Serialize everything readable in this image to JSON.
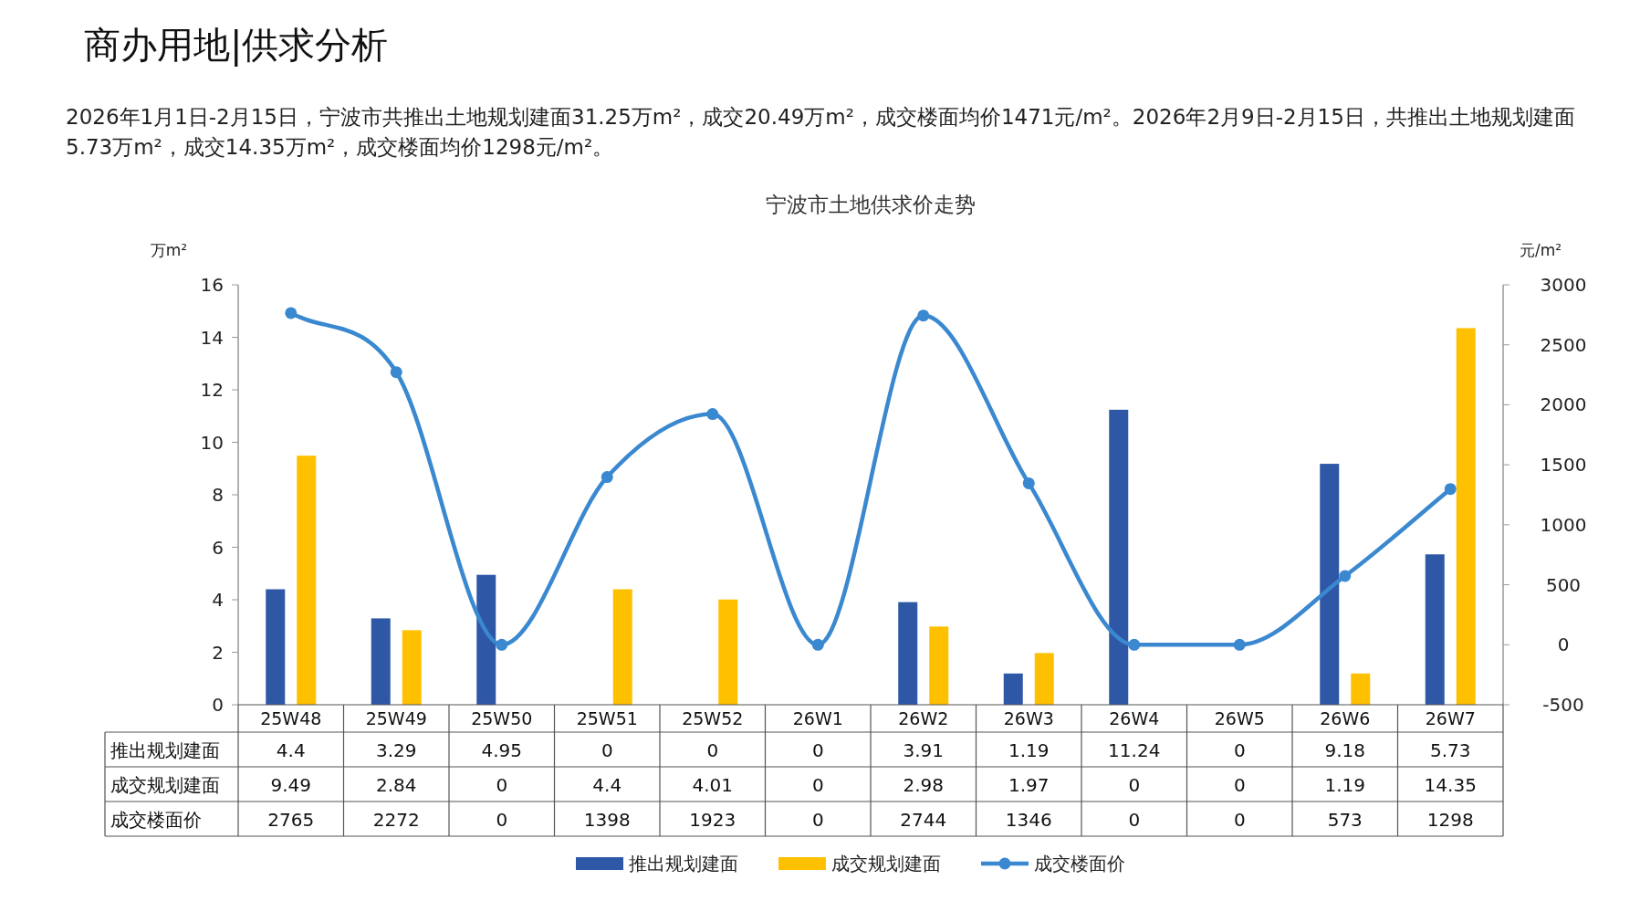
{
  "chart_data": {
    "type": "bar",
    "title": "宁波市土地供求价走势",
    "annotations": [
      "商办用地|供求分析",
      "2026年1月1日-2月15日，宁波市共推出土地规划建面31.25万m²，成交20.49万m²，成交楼面均价1471元/m²。2026年2月9日-2月15日，共推出土地规划建面5.73万m²，成交14.35万m²，成交楼面均价1298元/m²。"
    ],
    "ylabel": "万m²",
    "y2label": "元/m²",
    "categories": [
      "25W48",
      "25W49",
      "25W50",
      "25W51",
      "25W52",
      "26W1",
      "26W2",
      "26W3",
      "26W4",
      "26W5",
      "26W6",
      "26W7"
    ],
    "series": [
      {
        "name": "推出规划建面",
        "color": "#2e58a6",
        "values": [
          4.4,
          3.29,
          4.95,
          0,
          0,
          0,
          3.91,
          1.19,
          11.24,
          0,
          9.18,
          5.73
        ]
      },
      {
        "name": "成交规划建面",
        "color": "#ffc000",
        "values": [
          9.49,
          2.84,
          0,
          4.4,
          4.01,
          0,
          2.98,
          1.97,
          0,
          0,
          1.19,
          14.35
        ]
      },
      {
        "name": "成交楼面价",
        "type": "line",
        "axis": "y2",
        "color": "#3a88d0",
        "marker": "circle",
        "values": [
          2765,
          2272,
          0,
          1398,
          1923,
          0,
          2744,
          1346,
          0,
          0,
          573,
          1298
        ]
      }
    ],
    "ylim": [
      0,
      16
    ],
    "yticks": [
      0,
      2,
      4,
      6,
      8,
      10,
      12,
      14,
      16
    ],
    "y2lim": [
      -500,
      3000
    ],
    "y2ticks": [
      -500,
      0,
      500,
      1000,
      1500,
      2000,
      2500,
      3000
    ],
    "data_labels": true,
    "legend": "bottom"
  }
}
